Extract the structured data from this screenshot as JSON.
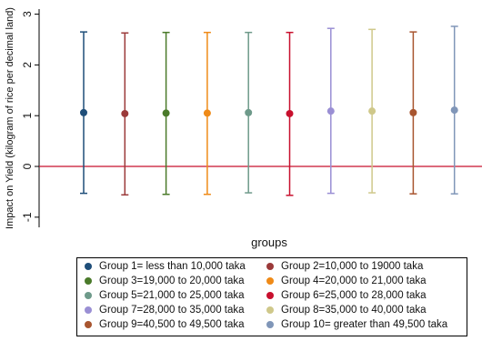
{
  "chart_data": {
    "type": "scatter",
    "subtype": "errorbar",
    "xlabel": "groups",
    "ylabel": "Impact on Yield (kilogram of rice per decimal land)",
    "ylim": [
      -1.2,
      3.1
    ],
    "yticks": [
      -1,
      0,
      1,
      2,
      3
    ],
    "ytick_labels": [
      "-1",
      "0",
      "1",
      "2",
      "3"
    ],
    "reference_line": {
      "y": 0,
      "color": "#c8102e"
    },
    "grid": false,
    "legend_position": "bottom",
    "series": [
      {
        "name": "Group 1= less than 10,000 taka",
        "color": "#1f4e79",
        "point": 1.06,
        "low": -0.53,
        "high": 2.65
      },
      {
        "name": "Group 2=10,000 to 19000 taka",
        "color": "#9b3a3a",
        "point": 1.04,
        "low": -0.56,
        "high": 2.63
      },
      {
        "name": "Group 3=19,000 to 20,000 taka",
        "color": "#4a7a2a",
        "point": 1.05,
        "low": -0.55,
        "high": 2.64
      },
      {
        "name": "Group 4=20,000 to 21,000 taka",
        "color": "#ef8a17",
        "point": 1.05,
        "low": -0.55,
        "high": 2.64
      },
      {
        "name": "Group 5=21,000 to 25,000 taka",
        "color": "#6e9a8a",
        "point": 1.06,
        "low": -0.52,
        "high": 2.64
      },
      {
        "name": "Group 6=25,000 to 28,000 taka",
        "color": "#c8102e",
        "point": 1.04,
        "low": -0.57,
        "high": 2.64
      },
      {
        "name": "Group 7=28,000 to 35,000 taka",
        "color": "#9a8fd4",
        "point": 1.09,
        "low": -0.53,
        "high": 2.72
      },
      {
        "name": "Group 8=35,000 to 40,000 taka",
        "color": "#cfc88a",
        "point": 1.09,
        "low": -0.52,
        "high": 2.7
      },
      {
        "name": "Group 9=40,500 to 49,500 taka",
        "color": "#a8552f",
        "point": 1.06,
        "low": -0.54,
        "high": 2.65
      },
      {
        "name": "Group 10= greater than 49,500 taka",
        "color": "#8096b8",
        "point": 1.11,
        "low": -0.54,
        "high": 2.76
      }
    ]
  }
}
